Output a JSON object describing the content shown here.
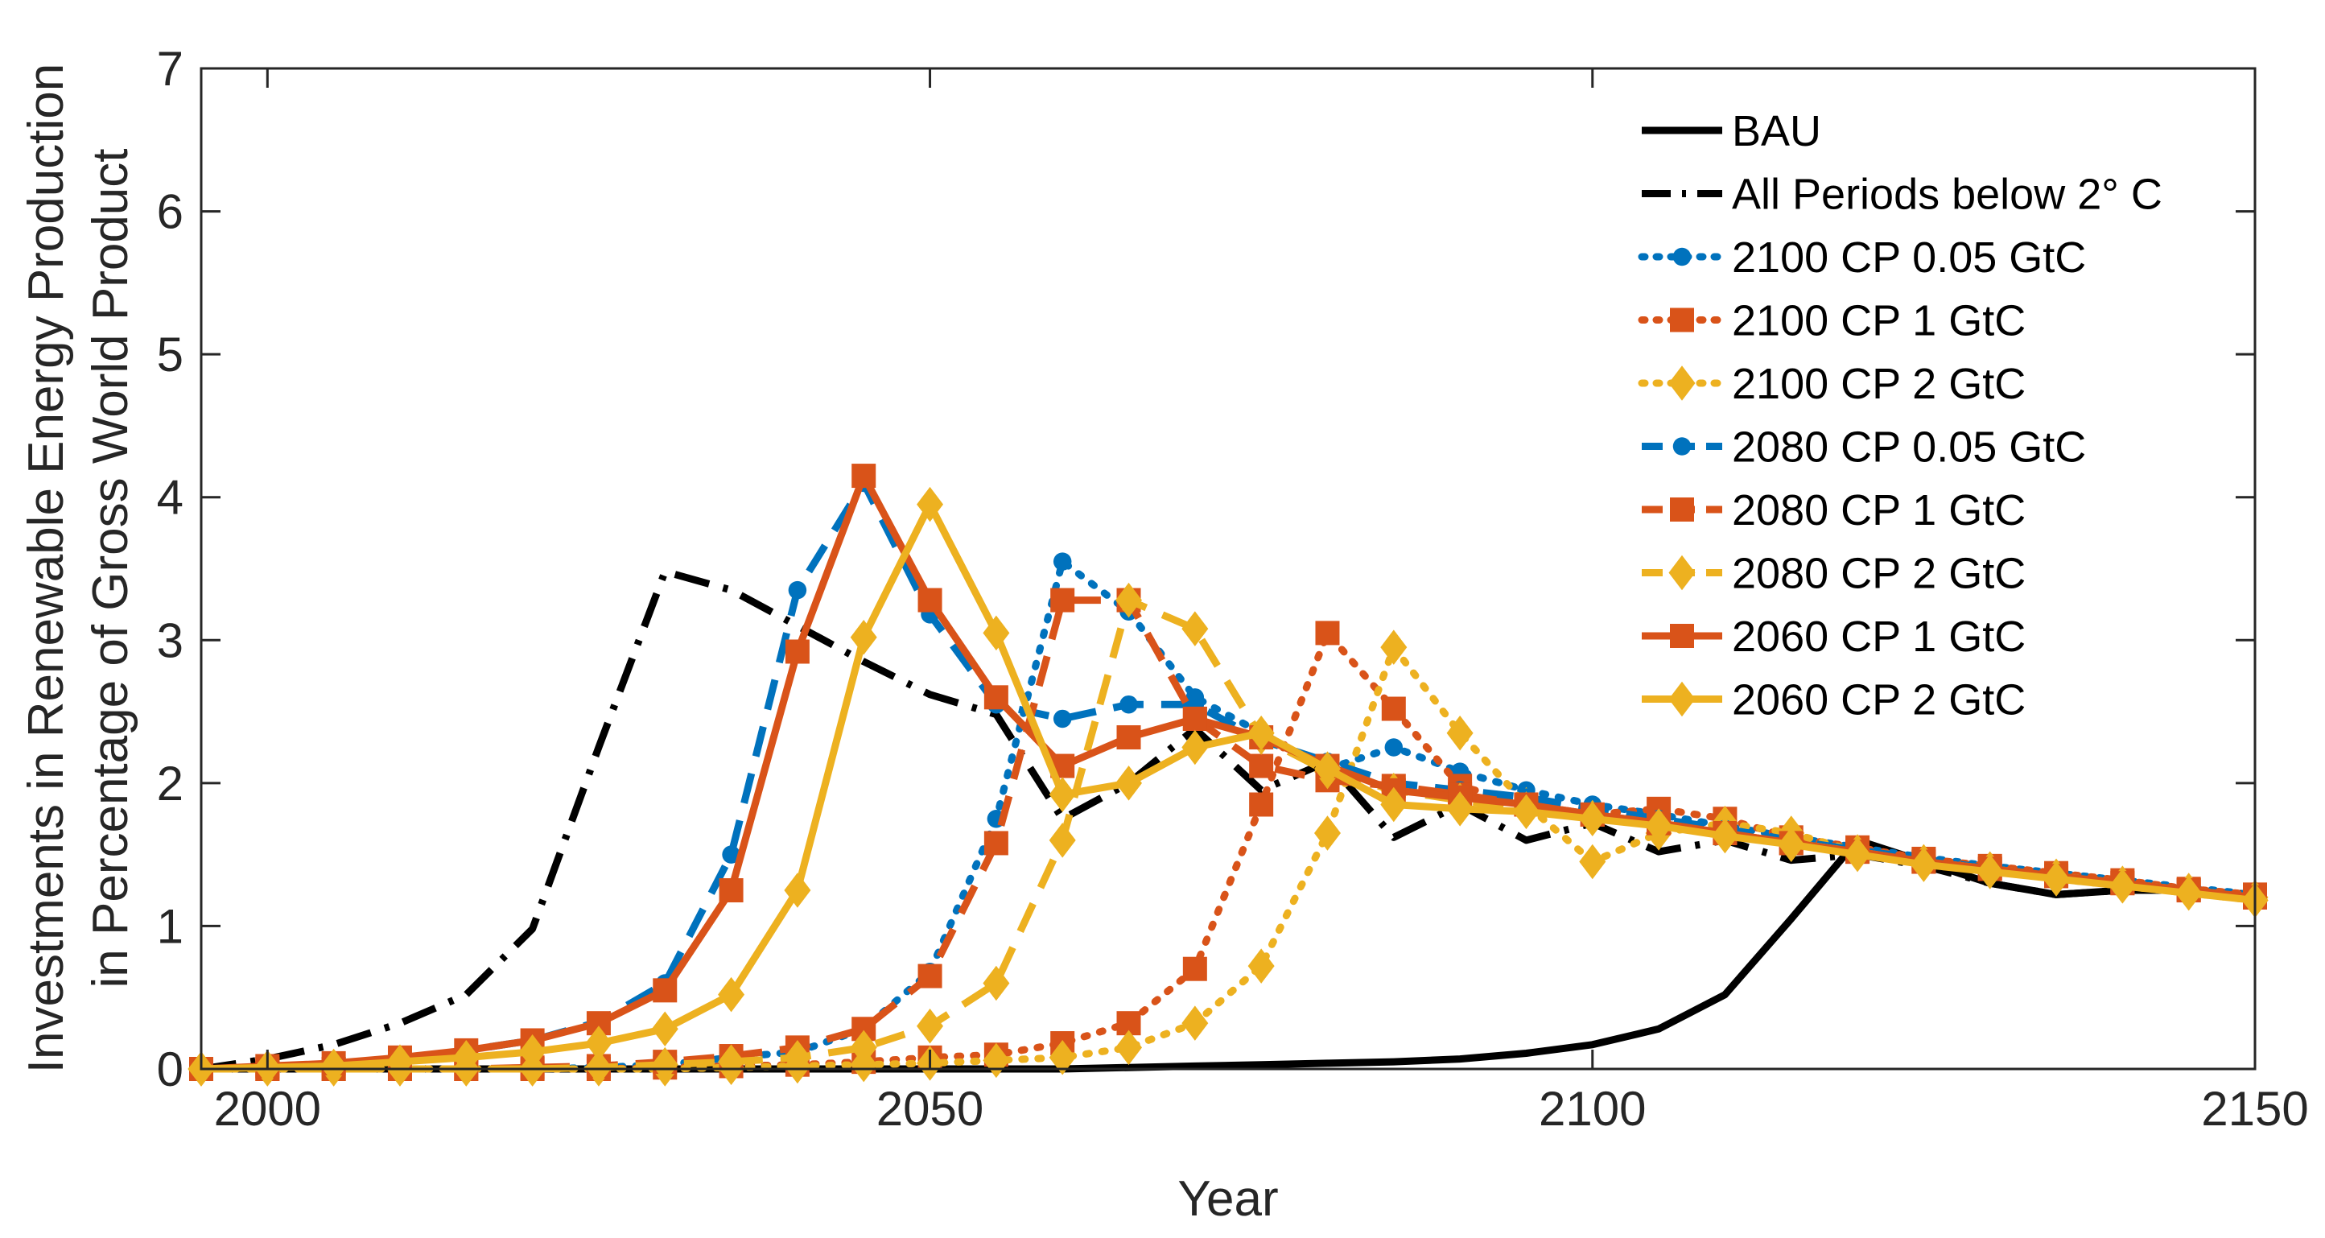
{
  "chart_data": {
    "type": "line",
    "title": "",
    "xlabel": "Year",
    "ylabel_lines": [
      "Investments in Renewable Energy Production",
      "in Percentage of Gross World Product"
    ],
    "xlim": [
      1995,
      2150
    ],
    "ylim": [
      0,
      7
    ],
    "xticks": [
      2000,
      2050,
      2100,
      2150
    ],
    "yticks": [
      0,
      1,
      2,
      3,
      4,
      5,
      6,
      7
    ],
    "grid": false,
    "legend_position": "top-right",
    "x": [
      1995,
      2000,
      2005,
      2010,
      2015,
      2020,
      2025,
      2030,
      2035,
      2040,
      2045,
      2050,
      2055,
      2060,
      2065,
      2070,
      2075,
      2080,
      2085,
      2090,
      2095,
      2100,
      2105,
      2110,
      2115,
      2120,
      2125,
      2130,
      2135,
      2140,
      2145,
      2150
    ],
    "series": [
      {
        "name": "BAU",
        "color": "#000000",
        "dash": "solid",
        "marker": "none",
        "values": [
          0,
          0,
          0,
          0,
          0,
          0,
          0,
          0,
          0,
          0,
          0,
          0,
          0,
          0,
          0.01,
          0.02,
          0.03,
          0.04,
          0.05,
          0.07,
          0.11,
          0.17,
          0.28,
          0.52,
          1.05,
          1.6,
          1.45,
          1.3,
          1.22,
          1.25,
          1.25,
          1.22
        ]
      },
      {
        "name": "All Periods below 2° C",
        "color": "#000000",
        "dash": "dashdot",
        "marker": "none",
        "values": [
          0,
          0.07,
          0.17,
          0.32,
          0.52,
          0.98,
          2.25,
          3.48,
          3.35,
          3.1,
          2.85,
          2.62,
          2.48,
          1.75,
          2.0,
          2.38,
          1.95,
          2.15,
          1.62,
          1.85,
          1.6,
          1.72,
          1.52,
          1.6,
          1.46,
          1.5,
          1.42,
          1.3,
          1.22,
          1.25,
          1.25,
          1.22
        ]
      },
      {
        "name": "2100 CP 0.05 GtC",
        "color": "#0072BD",
        "dash": "dot",
        "marker": "circle",
        "values": [
          0,
          0,
          0,
          0,
          0,
          0,
          0.01,
          0.03,
          0.08,
          0.12,
          0.28,
          0.68,
          1.75,
          3.55,
          3.2,
          2.6,
          2.35,
          2.1,
          2.25,
          2.08,
          1.95,
          1.85,
          1.78,
          1.7,
          1.62,
          1.55,
          1.48,
          1.42,
          1.37,
          1.32,
          1.27,
          1.22
        ]
      },
      {
        "name": "2100 CP 1 GtC",
        "color": "#D95319",
        "dash": "dot",
        "marker": "square",
        "values": [
          0,
          0,
          0,
          0,
          0,
          0,
          0,
          0.01,
          0.02,
          0.03,
          0.05,
          0.08,
          0.1,
          0.18,
          0.32,
          0.7,
          1.85,
          3.05,
          2.52,
          1.98,
          1.85,
          1.78,
          1.82,
          1.75,
          1.62,
          1.55,
          1.47,
          1.42,
          1.37,
          1.32,
          1.26,
          1.22
        ]
      },
      {
        "name": "2100 CP 2 GtC",
        "color": "#EDB120",
        "dash": "dot",
        "marker": "diamond",
        "values": [
          0,
          0,
          0,
          0,
          0,
          0,
          0,
          0,
          0.01,
          0.02,
          0.03,
          0.04,
          0.06,
          0.08,
          0.15,
          0.32,
          0.72,
          1.65,
          2.95,
          2.35,
          1.85,
          1.45,
          1.65,
          1.72,
          1.65,
          1.52,
          1.45,
          1.4,
          1.33,
          1.28,
          1.23,
          1.18
        ]
      },
      {
        "name": "2080 CP 0.05 GtC",
        "color": "#0072BD",
        "dash": "dash",
        "marker": "circle",
        "values": [
          0,
          0.01,
          0.03,
          0.07,
          0.13,
          0.2,
          0.33,
          0.6,
          1.5,
          3.35,
          4.1,
          3.18,
          2.55,
          2.45,
          2.55,
          2.55,
          2.3,
          2.15,
          2.0,
          1.95,
          1.9,
          1.82,
          1.75,
          1.68,
          1.6,
          1.53,
          1.47,
          1.4,
          1.35,
          1.3,
          1.25,
          1.2
        ]
      },
      {
        "name": "2080 CP 1 GtC",
        "color": "#D95319",
        "dash": "dash",
        "marker": "square",
        "values": [
          0,
          0,
          0,
          0,
          0,
          0.01,
          0.02,
          0.05,
          0.09,
          0.15,
          0.28,
          0.65,
          1.58,
          3.28,
          3.28,
          2.45,
          2.12,
          2.02,
          1.98,
          1.92,
          1.85,
          1.78,
          1.72,
          1.65,
          1.58,
          1.52,
          1.45,
          1.4,
          1.35,
          1.3,
          1.25,
          1.2
        ]
      },
      {
        "name": "2080 CP 2 GtC",
        "color": "#EDB120",
        "dash": "dash",
        "marker": "diamond",
        "values": [
          0,
          0,
          0,
          0,
          0,
          0,
          0.01,
          0.03,
          0.05,
          0.08,
          0.15,
          0.3,
          0.6,
          1.6,
          3.28,
          3.08,
          2.32,
          2.08,
          1.95,
          1.88,
          1.82,
          1.76,
          1.7,
          1.64,
          1.58,
          1.52,
          1.45,
          1.4,
          1.35,
          1.3,
          1.25,
          1.2
        ]
      },
      {
        "name": "2060 CP 1 GtC",
        "color": "#D95319",
        "dash": "solid",
        "marker": "square",
        "values": [
          0,
          0.02,
          0.04,
          0.08,
          0.13,
          0.2,
          0.32,
          0.55,
          1.25,
          2.92,
          4.15,
          3.28,
          2.6,
          2.12,
          2.32,
          2.45,
          2.32,
          2.12,
          1.95,
          1.9,
          1.85,
          1.78,
          1.72,
          1.65,
          1.58,
          1.52,
          1.45,
          1.4,
          1.35,
          1.3,
          1.25,
          1.2
        ]
      },
      {
        "name": "2060 CP 2 GtC",
        "color": "#EDB120",
        "dash": "solid",
        "marker": "diamond",
        "values": [
          0,
          0.01,
          0.02,
          0.05,
          0.08,
          0.12,
          0.18,
          0.28,
          0.52,
          1.25,
          3.02,
          3.95,
          3.05,
          1.92,
          2.0,
          2.25,
          2.35,
          2.1,
          1.85,
          1.82,
          1.8,
          1.75,
          1.7,
          1.63,
          1.57,
          1.5,
          1.43,
          1.38,
          1.33,
          1.28,
          1.23,
          1.18
        ]
      }
    ]
  }
}
